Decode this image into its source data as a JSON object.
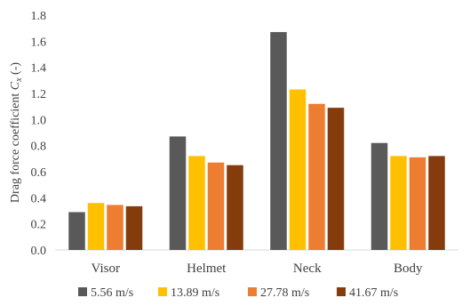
{
  "chart_data": {
    "type": "bar",
    "title": "",
    "xlabel": "",
    "ylabel": "Drag force coefficient",
    "ylabel_symbol": "C",
    "ylabel_subscript": "x",
    "ylabel_unit": " (-)",
    "ylim": [
      0,
      1.8
    ],
    "yticks": [
      0.0,
      0.2,
      0.4,
      0.6,
      0.8,
      1.0,
      1.2,
      1.4,
      1.6,
      1.8
    ],
    "ytick_labels": [
      "0.0",
      "0.2",
      "0.4",
      "0.6",
      "0.8",
      "1.0",
      "1.2",
      "1.4",
      "1.6",
      "1.8"
    ],
    "grid": false,
    "legend": "bottom",
    "categories": [
      "Visor",
      "Helmet",
      "Neck",
      "Body"
    ],
    "series": [
      {
        "name": "5.56 m/s",
        "color": "#595959",
        "values": [
          0.29,
          0.87,
          1.67,
          0.82
        ]
      },
      {
        "name": "13.89 m/s",
        "color": "#ffc000",
        "values": [
          0.36,
          0.72,
          1.23,
          0.72
        ]
      },
      {
        "name": "27.78 m/s",
        "color": "#ed7d31",
        "values": [
          0.345,
          0.67,
          1.12,
          0.71
        ]
      },
      {
        "name": "41.67 m/s",
        "color": "#843c0c",
        "values": [
          0.335,
          0.65,
          1.09,
          0.72
        ]
      }
    ]
  }
}
